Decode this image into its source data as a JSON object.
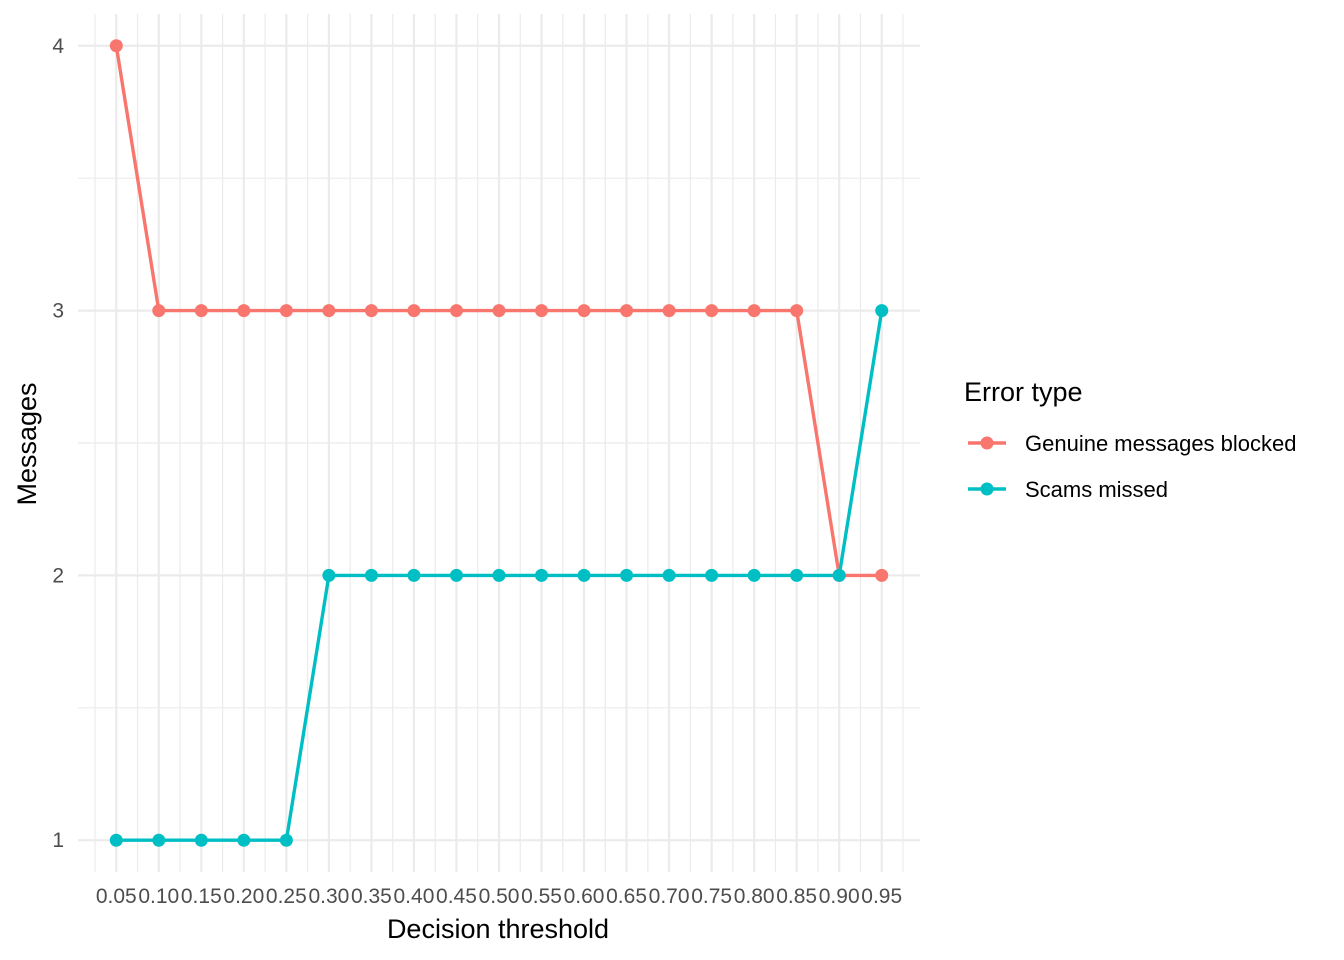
{
  "chart_data": {
    "type": "line",
    "xlabel": "Decision threshold",
    "ylabel": "Messages",
    "x": [
      0.05,
      0.1,
      0.15,
      0.2,
      0.25,
      0.3,
      0.35,
      0.4,
      0.45,
      0.5,
      0.55,
      0.6,
      0.65,
      0.7,
      0.75,
      0.8,
      0.85,
      0.9,
      0.95
    ],
    "x_tick_labels": [
      "0.05",
      "0.10",
      "0.15",
      "0.20",
      "0.25",
      "0.30",
      "0.35",
      "0.40",
      "0.45",
      "0.50",
      "0.55",
      "0.60",
      "0.65",
      "0.70",
      "0.75",
      "0.80",
      "0.85",
      "0.90",
      "0.95"
    ],
    "y_ticks": [
      1,
      2,
      3,
      4
    ],
    "y_tick_labels": [
      "1",
      "2",
      "3",
      "4"
    ],
    "ylim": [
      0.88,
      4.12
    ],
    "xlim": [
      0.005,
      0.995
    ],
    "grid": true,
    "markers": true,
    "legend": {
      "title": "Error type",
      "position": "right"
    },
    "series": [
      {
        "name": "Genuine messages blocked",
        "color": "#F8766D",
        "values": [
          4,
          3,
          3,
          3,
          3,
          3,
          3,
          3,
          3,
          3,
          3,
          3,
          3,
          3,
          3,
          3,
          3,
          2,
          2
        ]
      },
      {
        "name": "Scams missed",
        "color": "#00BFC4",
        "values": [
          1,
          1,
          1,
          1,
          1,
          2,
          2,
          2,
          2,
          2,
          2,
          2,
          2,
          2,
          2,
          2,
          2,
          2,
          3
        ]
      }
    ]
  }
}
